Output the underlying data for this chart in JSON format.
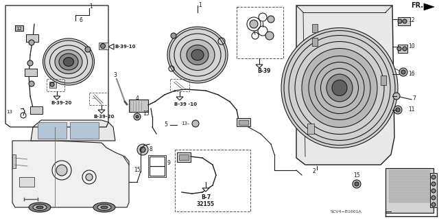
{
  "bg_color": "#ffffff",
  "line_color": "#1a1a1a",
  "fig_width": 6.4,
  "fig_height": 3.19,
  "dpi": 100,
  "labels": {
    "fr": "FR.",
    "b39": "B-39",
    "b3910a": "B-39-10",
    "b3910b": "B-39 -10",
    "b3920a": "B-39-20",
    "b3920b": "B-39-20",
    "b7": "B-7",
    "b7_2": "32155",
    "scv": "SCV4−B1601A"
  }
}
